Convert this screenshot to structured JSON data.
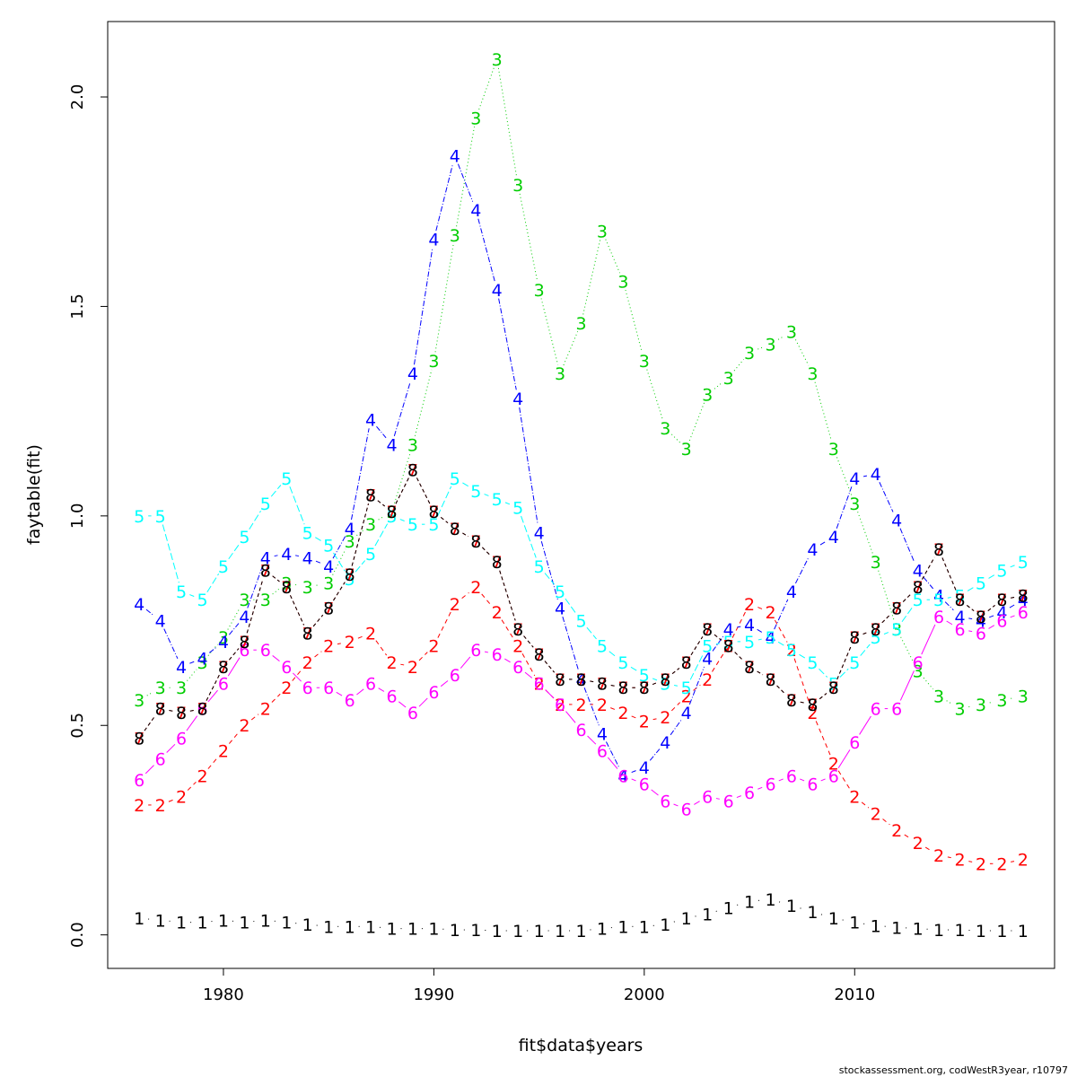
{
  "chart_data": {
    "type": "line",
    "title": "",
    "xlabel": "fit$data$years",
    "ylabel": "faytable(fit)",
    "xlim": [
      1974.5,
      2019.5
    ],
    "ylim": [
      -0.08,
      2.18
    ],
    "xticks": [
      "1980",
      "1990",
      "2000",
      "2010"
    ],
    "yticks": [
      "0.0",
      "0.5",
      "1.0",
      "1.5",
      "2.0"
    ],
    "grid": false,
    "legend": "none",
    "x": [
      1976,
      1977,
      1978,
      1979,
      1980,
      1981,
      1982,
      1983,
      1984,
      1985,
      1986,
      1987,
      1988,
      1989,
      1990,
      1991,
      1992,
      1993,
      1994,
      1995,
      1996,
      1997,
      1998,
      1999,
      2000,
      2001,
      2002,
      2003,
      2004,
      2005,
      2006,
      2007,
      2008,
      2009,
      2010,
      2011,
      2012,
      2013,
      2014,
      2015,
      2016,
      2017,
      2018
    ],
    "series": [
      {
        "label": "1",
        "color": "#000000",
        "dash": "1,4",
        "values": [
          0.04,
          0.035,
          0.03,
          0.03,
          0.035,
          0.03,
          0.035,
          0.03,
          0.025,
          0.02,
          0.02,
          0.02,
          0.015,
          0.015,
          0.015,
          0.012,
          0.012,
          0.01,
          0.01,
          0.01,
          0.01,
          0.01,
          0.015,
          0.02,
          0.02,
          0.025,
          0.04,
          0.05,
          0.065,
          0.08,
          0.085,
          0.07,
          0.055,
          0.04,
          0.03,
          0.022,
          0.018,
          0.015,
          0.012,
          0.012,
          0.01,
          0.01,
          0.01
        ]
      },
      {
        "label": "2",
        "color": "#ff0000",
        "dash": "5,4",
        "values": [
          0.31,
          0.31,
          0.33,
          0.38,
          0.44,
          0.5,
          0.54,
          0.59,
          0.65,
          0.69,
          0.7,
          0.72,
          0.65,
          0.64,
          0.69,
          0.79,
          0.83,
          0.77,
          0.69,
          0.6,
          0.55,
          0.55,
          0.55,
          0.53,
          0.51,
          0.52,
          0.57,
          0.61,
          0.69,
          0.79,
          0.77,
          0.68,
          0.53,
          0.41,
          0.33,
          0.29,
          0.25,
          0.22,
          0.19,
          0.18,
          0.17,
          0.17,
          0.18
        ]
      },
      {
        "label": "3",
        "color": "#00cd00",
        "dash": "1,3",
        "values": [
          0.56,
          0.59,
          0.59,
          0.65,
          0.71,
          0.8,
          0.8,
          0.84,
          0.83,
          0.84,
          0.94,
          0.98,
          1.01,
          1.17,
          1.37,
          1.67,
          1.95,
          2.09,
          1.79,
          1.54,
          1.34,
          1.46,
          1.68,
          1.56,
          1.37,
          1.21,
          1.16,
          1.29,
          1.33,
          1.39,
          1.41,
          1.44,
          1.34,
          1.16,
          1.03,
          0.89,
          0.73,
          0.63,
          0.57,
          0.54,
          0.55,
          0.56,
          0.57
        ]
      },
      {
        "label": "4",
        "color": "#0000ff",
        "dash": "6,2,1,2",
        "values": [
          0.79,
          0.75,
          0.64,
          0.66,
          0.7,
          0.76,
          0.9,
          0.91,
          0.9,
          0.88,
          0.97,
          1.23,
          1.17,
          1.34,
          1.66,
          1.86,
          1.73,
          1.54,
          1.28,
          0.96,
          0.78,
          0.61,
          0.48,
          0.38,
          0.4,
          0.46,
          0.53,
          0.66,
          0.73,
          0.74,
          0.71,
          0.82,
          0.92,
          0.95,
          1.09,
          1.1,
          0.99,
          0.87,
          0.81,
          0.76,
          0.75,
          0.77,
          0.8
        ]
      },
      {
        "label": "5",
        "color": "#00ffff",
        "dash": "8,3",
        "values": [
          1.0,
          1.0,
          0.82,
          0.8,
          0.88,
          0.95,
          1.03,
          1.09,
          0.96,
          0.93,
          0.85,
          0.91,
          1.0,
          0.98,
          0.98,
          1.09,
          1.06,
          1.04,
          1.02,
          0.88,
          0.82,
          0.75,
          0.69,
          0.65,
          0.62,
          0.6,
          0.59,
          0.69,
          0.7,
          0.7,
          0.71,
          0.68,
          0.65,
          0.6,
          0.65,
          0.71,
          0.73,
          0.8,
          0.8,
          0.81,
          0.84,
          0.87,
          0.89
        ]
      },
      {
        "label": "6",
        "color": "#ff00ff",
        "dash": "none",
        "values": [
          0.37,
          0.42,
          0.47,
          0.54,
          0.6,
          0.68,
          0.68,
          0.64,
          0.59,
          0.59,
          0.56,
          0.6,
          0.57,
          0.53,
          0.58,
          0.62,
          0.68,
          0.67,
          0.64,
          0.6,
          0.55,
          0.49,
          0.44,
          0.38,
          0.36,
          0.32,
          0.3,
          0.33,
          0.32,
          0.34,
          0.36,
          0.38,
          0.36,
          0.38,
          0.46,
          0.54,
          0.54,
          0.65,
          0.76,
          0.73,
          0.72,
          0.75,
          0.77
        ]
      },
      {
        "label": "7",
        "color": "#ff0000",
        "dash": "4,3",
        "values": [
          0.47,
          0.54,
          0.53,
          0.54,
          0.64,
          0.7,
          0.87,
          0.83,
          0.72,
          0.78,
          0.86,
          1.05,
          1.01,
          1.11,
          1.01,
          0.97,
          0.94,
          0.89,
          0.73,
          0.67,
          0.61,
          0.61,
          0.6,
          0.59,
          0.59,
          0.61,
          0.65,
          0.73,
          0.69,
          0.64,
          0.61,
          0.56,
          0.55,
          0.59,
          0.71,
          0.73,
          0.78,
          0.83,
          0.92,
          0.8,
          0.76,
          0.8,
          0.81
        ]
      },
      {
        "label": "8",
        "color": "#000000",
        "dash": "4,3",
        "values": [
          0.47,
          0.54,
          0.53,
          0.54,
          0.64,
          0.7,
          0.87,
          0.83,
          0.72,
          0.78,
          0.86,
          1.05,
          1.01,
          1.11,
          1.01,
          0.97,
          0.94,
          0.89,
          0.73,
          0.67,
          0.61,
          0.61,
          0.6,
          0.59,
          0.59,
          0.61,
          0.65,
          0.73,
          0.69,
          0.64,
          0.61,
          0.56,
          0.55,
          0.59,
          0.71,
          0.73,
          0.78,
          0.83,
          0.92,
          0.8,
          0.76,
          0.8,
          0.81
        ]
      }
    ]
  },
  "footer": "stockassessment.org, codWestR3year, r10797"
}
